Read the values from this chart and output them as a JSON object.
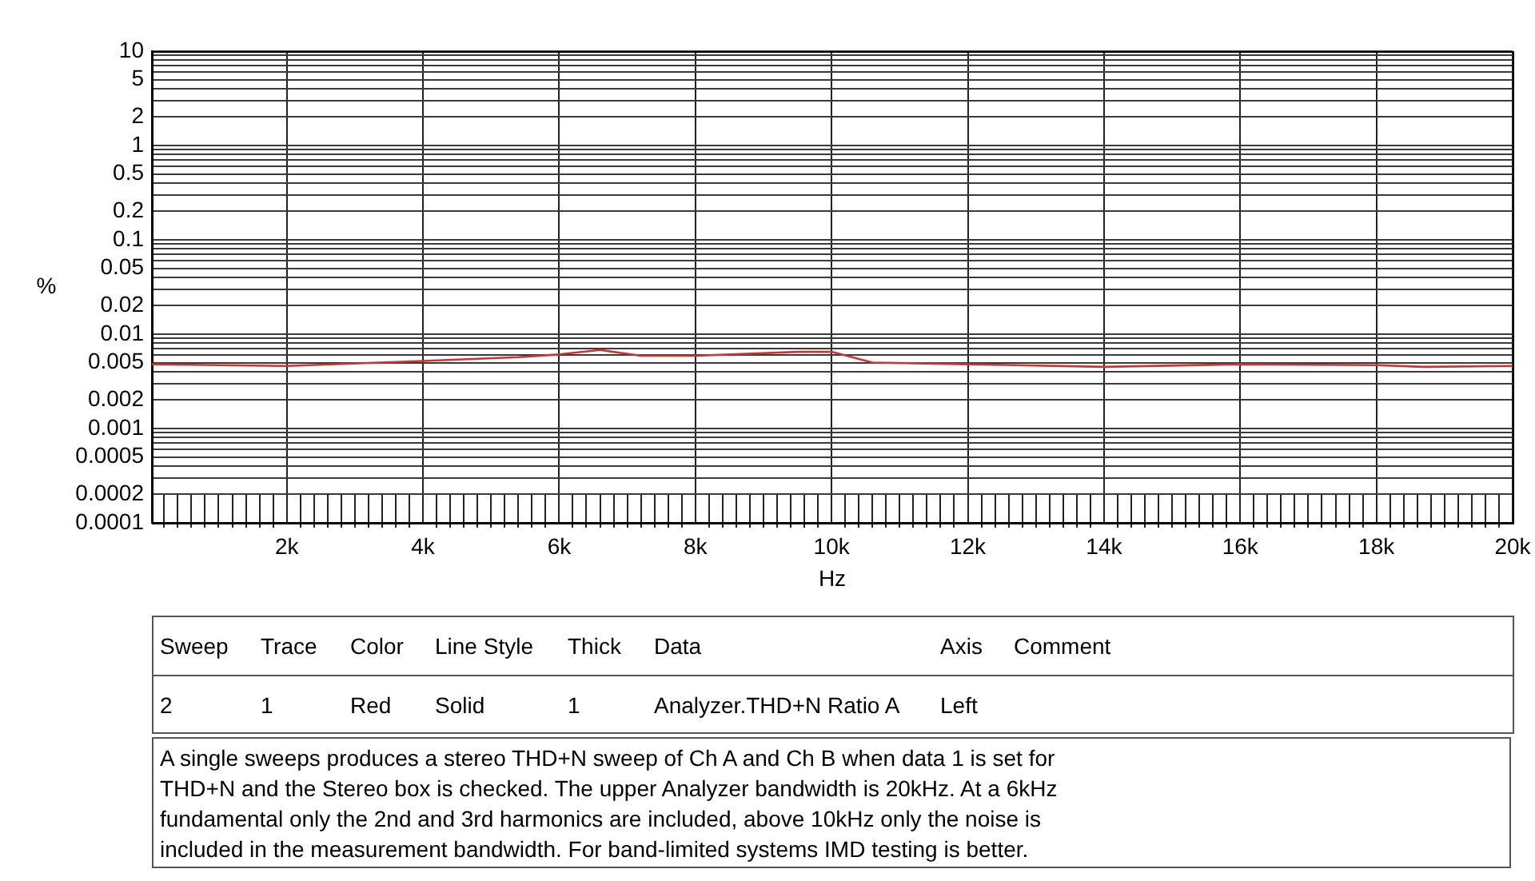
{
  "chart_data": {
    "type": "line",
    "xlabel": "Hz",
    "ylabel": "%",
    "x": [
      20,
      2000,
      4000,
      5400,
      6000,
      6600,
      7200,
      8000,
      9500,
      10000,
      10600,
      12000,
      14000,
      16000,
      18000,
      18700,
      20000
    ],
    "values": [
      0.0048,
      0.0046,
      0.0052,
      0.0057,
      0.0061,
      0.0068,
      0.0059,
      0.0059,
      0.0065,
      0.0065,
      0.005,
      0.0048,
      0.0045,
      0.0048,
      0.0047,
      0.0045,
      0.0046
    ],
    "color": "#cc3333",
    "line_style": "solid",
    "log": "y",
    "grid": true,
    "xlim": [
      20,
      20000
    ],
    "xticks": [
      {
        "value": 200,
        "label": null
      },
      {
        "value": 400,
        "label": null
      },
      {
        "value": 600,
        "label": null
      },
      {
        "value": 800,
        "label": null
      },
      {
        "value": 1000,
        "label": null
      },
      {
        "value": 1200,
        "label": null
      },
      {
        "value": 1400,
        "label": null
      },
      {
        "value": 1600,
        "label": null
      },
      {
        "value": 1800,
        "label": null
      },
      {
        "value": 2000,
        "label": "2k"
      },
      {
        "value": 2200,
        "label": null
      },
      {
        "value": 2400,
        "label": null
      },
      {
        "value": 2600,
        "label": null
      },
      {
        "value": 2800,
        "label": null
      },
      {
        "value": 3000,
        "label": null
      },
      {
        "value": 3200,
        "label": null
      },
      {
        "value": 3400,
        "label": null
      },
      {
        "value": 3600,
        "label": null
      },
      {
        "value": 3800,
        "label": null
      },
      {
        "value": 4000,
        "label": "4k"
      },
      {
        "value": 4200,
        "label": null
      },
      {
        "value": 4400,
        "label": null
      },
      {
        "value": 4600,
        "label": null
      },
      {
        "value": 4800,
        "label": null
      },
      {
        "value": 5000,
        "label": null
      },
      {
        "value": 5200,
        "label": null
      },
      {
        "value": 5400,
        "label": null
      },
      {
        "value": 5600,
        "label": null
      },
      {
        "value": 5800,
        "label": null
      },
      {
        "value": 6000,
        "label": "6k"
      },
      {
        "value": 6200,
        "label": null
      },
      {
        "value": 6400,
        "label": null
      },
      {
        "value": 6600,
        "label": null
      },
      {
        "value": 6800,
        "label": null
      },
      {
        "value": 7000,
        "label": null
      },
      {
        "value": 7200,
        "label": null
      },
      {
        "value": 7400,
        "label": null
      },
      {
        "value": 7600,
        "label": null
      },
      {
        "value": 7800,
        "label": null
      },
      {
        "value": 8000,
        "label": "8k"
      },
      {
        "value": 8200,
        "label": null
      },
      {
        "value": 8400,
        "label": null
      },
      {
        "value": 8600,
        "label": null
      },
      {
        "value": 8800,
        "label": null
      },
      {
        "value": 9000,
        "label": null
      },
      {
        "value": 9200,
        "label": null
      },
      {
        "value": 9400,
        "label": null
      },
      {
        "value": 9600,
        "label": null
      },
      {
        "value": 9800,
        "label": null
      },
      {
        "value": 10000,
        "label": "10k"
      },
      {
        "value": 10200,
        "label": null
      },
      {
        "value": 10400,
        "label": null
      },
      {
        "value": 10600,
        "label": null
      },
      {
        "value": 10800,
        "label": null
      },
      {
        "value": 11000,
        "label": null
      },
      {
        "value": 11200,
        "label": null
      },
      {
        "value": 11400,
        "label": null
      },
      {
        "value": 11600,
        "label": null
      },
      {
        "value": 11800,
        "label": null
      },
      {
        "value": 12000,
        "label": "12k"
      },
      {
        "value": 12200,
        "label": null
      },
      {
        "value": 12400,
        "label": null
      },
      {
        "value": 12600,
        "label": null
      },
      {
        "value": 12800,
        "label": null
      },
      {
        "value": 13000,
        "label": null
      },
      {
        "value": 13200,
        "label": null
      },
      {
        "value": 13400,
        "label": null
      },
      {
        "value": 13600,
        "label": null
      },
      {
        "value": 13800,
        "label": null
      },
      {
        "value": 14000,
        "label": "14k"
      },
      {
        "value": 14200,
        "label": null
      },
      {
        "value": 14400,
        "label": null
      },
      {
        "value": 14600,
        "label": null
      },
      {
        "value": 14800,
        "label": null
      },
      {
        "value": 15000,
        "label": null
      },
      {
        "value": 15200,
        "label": null
      },
      {
        "value": 15400,
        "label": null
      },
      {
        "value": 15600,
        "label": null
      },
      {
        "value": 15800,
        "label": null
      },
      {
        "value": 16000,
        "label": "16k"
      },
      {
        "value": 16200,
        "label": null
      },
      {
        "value": 16400,
        "label": null
      },
      {
        "value": 16600,
        "label": null
      },
      {
        "value": 16800,
        "label": null
      },
      {
        "value": 17000,
        "label": null
      },
      {
        "value": 17200,
        "label": null
      },
      {
        "value": 17400,
        "label": null
      },
      {
        "value": 17600,
        "label": null
      },
      {
        "value": 17800,
        "label": null
      },
      {
        "value": 18000,
        "label": "18k"
      },
      {
        "value": 18200,
        "label": null
      },
      {
        "value": 18400,
        "label": null
      },
      {
        "value": 18600,
        "label": null
      },
      {
        "value": 18800,
        "label": null
      },
      {
        "value": 19000,
        "label": null
      },
      {
        "value": 19200,
        "label": null
      },
      {
        "value": 19400,
        "label": null
      },
      {
        "value": 19600,
        "label": null
      },
      {
        "value": 19800,
        "label": null
      },
      {
        "value": 20000,
        "label": "20k"
      }
    ],
    "ylim": [
      0.0001,
      10
    ],
    "yticks": [
      0.0001,
      0.0002,
      {
        "value": 0.0003,
        "label": null
      },
      {
        "value": 0.0004,
        "label": null
      },
      0.0005,
      {
        "value": 0.0006,
        "label": null
      },
      {
        "value": 0.0007,
        "label": null
      },
      {
        "value": 0.0008,
        "label": null
      },
      {
        "value": 0.0009,
        "label": null
      },
      0.001,
      0.002,
      {
        "value": 0.003,
        "label": null
      },
      {
        "value": 0.004,
        "label": null
      },
      0.005,
      {
        "value": 0.006,
        "label": null
      },
      {
        "value": 0.007,
        "label": null
      },
      {
        "value": 0.008,
        "label": null
      },
      {
        "value": 0.009,
        "label": null
      },
      0.01,
      0.02,
      {
        "value": 0.03,
        "label": null
      },
      {
        "value": 0.04,
        "label": null
      },
      0.05,
      {
        "value": 0.06,
        "label": null
      },
      {
        "value": 0.07,
        "label": null
      },
      {
        "value": 0.08,
        "label": null
      },
      {
        "value": 0.09,
        "label": null
      },
      0.1,
      0.2,
      {
        "value": 0.3,
        "label": null
      },
      {
        "value": 0.4,
        "label": null
      },
      0.5,
      {
        "value": 0.6,
        "label": null
      },
      {
        "value": 0.7,
        "label": null
      },
      {
        "value": 0.8,
        "label": null
      },
      {
        "value": 0.9,
        "label": null
      },
      1,
      2,
      {
        "value": 3,
        "label": null
      },
      {
        "value": 4,
        "label": null
      },
      5,
      {
        "value": 6,
        "label": null
      },
      {
        "value": 7,
        "label": null
      },
      {
        "value": 8,
        "label": null
      },
      {
        "value": 9,
        "label": null
      },
      10
    ],
    "annotations": [
      "Sweep",
      "Trace",
      "Color",
      "Line Style",
      "Thick",
      "Data",
      "Axis",
      "Comment",
      "2",
      "1",
      "Red",
      "Solid",
      "1",
      "Analyzer.THD+N Ratio A",
      "Left",
      "A single sweeps produces a stereo THD+N sweep of Ch A and Ch B when data 1 is set for THD+N and the Stereo box is checked. The upper Analyzer bandwidth is 20kHz. At a 6kHz fundamental only the 2nd and 3rd harmonics are included, above 10kHz only the noise is included in the measurement bandwidth. For band-limited systems IMD testing is better."
    ]
  }
}
